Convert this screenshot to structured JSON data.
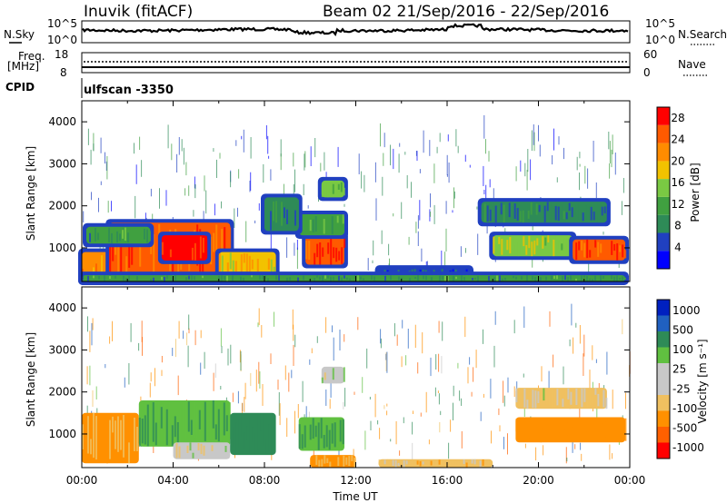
{
  "header": {
    "station": "Inuvik (fitACF)",
    "beam_date": "Beam 02  21/Sep/2016 - 22/Sep/2016"
  },
  "top_panel": {
    "left_label": "N.Sky",
    "right_label": "N.Search",
    "left_ticks": [
      "10^5",
      "10^0"
    ],
    "right_ticks": [
      "10^5",
      "10^0"
    ]
  },
  "freq_panel": {
    "left_label_1": "Freq.",
    "left_label_2": "[MHz]",
    "right_label": "Nave",
    "left_ticks": [
      "18",
      "8"
    ],
    "right_ticks": [
      "60",
      "0"
    ]
  },
  "cpid": {
    "label": "CPID",
    "value": "ulfscan -3350"
  },
  "colors": {
    "power": [
      "#0000ff",
      "#2040c0",
      "#2e8b57",
      "#40a040",
      "#7ac943",
      "#f2c200",
      "#ff8c00",
      "#ff5a00",
      "#ff0000"
    ],
    "velocity": [
      "#ff0000",
      "#ff6000",
      "#ff9000",
      "#f0c060",
      "#c8c8c8",
      "#c8c8c8",
      "#60c040",
      "#2e8b57",
      "#2060c0",
      "#0020c0"
    ]
  },
  "chart_data": [
    {
      "type": "heatmap",
      "name": "power",
      "ylabel": "Slant Range [km]",
      "yticks": [
        "1000",
        "2000",
        "3000",
        "4000"
      ],
      "ylim": [
        200,
        4500
      ],
      "xlim": [
        0,
        24
      ],
      "colorbar_label": "Power [dB]",
      "colorbar_ticks": [
        "4",
        "8",
        "12",
        "16",
        "20",
        "24",
        "28"
      ],
      "clim": [
        0,
        30
      ],
      "patches": [
        {
          "t0": 0.0,
          "t1": 1.2,
          "r0": 200,
          "r1": 900,
          "v": 22
        },
        {
          "t0": 1.2,
          "t1": 6.5,
          "r0": 300,
          "r1": 1600,
          "v": 24
        },
        {
          "t0": 3.5,
          "t1": 5.5,
          "r0": 700,
          "r1": 1300,
          "v": 28
        },
        {
          "t0": 0.2,
          "t1": 3.0,
          "r0": 1100,
          "r1": 1500,
          "v": 10
        },
        {
          "t0": 6.0,
          "t1": 8.5,
          "r0": 300,
          "r1": 900,
          "v": 18
        },
        {
          "t0": 9.8,
          "t1": 11.5,
          "r0": 600,
          "r1": 1300,
          "v": 26
        },
        {
          "t0": 9.5,
          "t1": 11.5,
          "r0": 1300,
          "r1": 1800,
          "v": 12
        },
        {
          "t0": 10.5,
          "t1": 11.5,
          "r0": 2200,
          "r1": 2600,
          "v": 14
        },
        {
          "t0": 13.0,
          "t1": 17.0,
          "r0": 300,
          "r1": 500,
          "v": 6
        },
        {
          "t0": 18.0,
          "t1": 21.5,
          "r0": 800,
          "r1": 1300,
          "v": 16
        },
        {
          "t0": 21.5,
          "t1": 23.8,
          "r0": 700,
          "r1": 1200,
          "v": 26
        },
        {
          "t0": 17.5,
          "t1": 23.0,
          "r0": 1600,
          "r1": 2100,
          "v": 8
        },
        {
          "t0": 8.0,
          "t1": 9.5,
          "r0": 1400,
          "r1": 2200,
          "v": 8
        },
        {
          "t0": 0.0,
          "t1": 23.8,
          "r0": 200,
          "r1": 350,
          "v": 10
        }
      ]
    },
    {
      "type": "heatmap",
      "name": "velocity",
      "xlabel": "Time UT",
      "ylabel": "Slant Range [km]",
      "xticks": [
        "00:00",
        "04:00",
        "08:00",
        "12:00",
        "16:00",
        "20:00",
        "00:00"
      ],
      "yticks": [
        "1000",
        "2000",
        "3000",
        "4000"
      ],
      "ylim": [
        200,
        4500
      ],
      "xlim": [
        0,
        24
      ],
      "colorbar_label": "Velocity [m s⁻¹]",
      "colorbar_ticks": [
        "1000",
        "500",
        "100",
        "25",
        "-25",
        "-100",
        "-500",
        "-1000"
      ],
      "patches": [
        {
          "t0": 0.0,
          "t1": 2.5,
          "r0": 300,
          "r1": 1500,
          "v": -100
        },
        {
          "t0": 2.5,
          "t1": 6.5,
          "r0": 700,
          "r1": 1800,
          "v": 100
        },
        {
          "t0": 4.0,
          "t1": 6.5,
          "r0": 400,
          "r1": 800,
          "v": 0
        },
        {
          "t0": 6.5,
          "t1": 8.5,
          "r0": 500,
          "r1": 1500,
          "v": 200
        },
        {
          "t0": 9.5,
          "t1": 11.5,
          "r0": 600,
          "r1": 1400,
          "v": 100
        },
        {
          "t0": 10.5,
          "t1": 11.5,
          "r0": 2200,
          "r1": 2600,
          "v": 0
        },
        {
          "t0": 10.0,
          "t1": 12.0,
          "r0": 200,
          "r1": 500,
          "v": -100
        },
        {
          "t0": 19.0,
          "t1": 23.8,
          "r0": 800,
          "r1": 1400,
          "v": -300
        },
        {
          "t0": 19.0,
          "t1": 23.0,
          "r0": 1600,
          "r1": 2100,
          "v": -30
        },
        {
          "t0": 13.0,
          "t1": 18.0,
          "r0": 200,
          "r1": 400,
          "v": -60
        }
      ]
    }
  ]
}
